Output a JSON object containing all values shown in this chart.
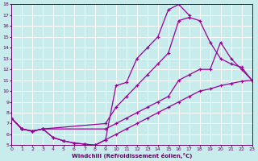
{
  "bg_color": "#c8ecec",
  "grid_color": "#ffffff",
  "line_color": "#990099",
  "xlabel": "Windchill (Refroidissement éolien,°C)",
  "xlim": [
    0,
    23
  ],
  "ylim": [
    5,
    18
  ],
  "xticks": [
    0,
    1,
    2,
    3,
    4,
    5,
    6,
    7,
    8,
    9,
    10,
    11,
    12,
    13,
    14,
    15,
    16,
    17,
    18,
    19,
    20,
    21,
    22,
    23
  ],
  "yticks": [
    5,
    6,
    7,
    8,
    9,
    10,
    11,
    12,
    13,
    14,
    15,
    16,
    17,
    18
  ],
  "curve1_x": [
    0,
    1,
    2,
    3,
    4,
    5,
    6,
    7,
    8,
    9,
    10,
    11,
    12,
    13,
    14,
    15,
    16,
    17
  ],
  "curve1_y": [
    7.5,
    6.5,
    6.3,
    6.5,
    5.7,
    5.4,
    5.2,
    5.1,
    5.0,
    5.5,
    10.5,
    10.8,
    13.0,
    14.0,
    15.0,
    17.5,
    18.0,
    17.0
  ],
  "curve2_x": [
    0,
    1,
    2,
    3,
    9,
    10,
    11,
    12,
    13,
    14,
    15,
    16,
    17,
    18,
    19,
    20,
    21,
    22,
    23
  ],
  "curve2_y": [
    7.5,
    6.5,
    6.3,
    6.5,
    7.0,
    8.5,
    9.5,
    10.5,
    11.5,
    12.5,
    13.5,
    16.5,
    16.8,
    16.5,
    14.5,
    13.0,
    12.5,
    12.2,
    11.0
  ],
  "curve3_x": [
    0,
    1,
    2,
    3,
    9,
    10,
    11,
    12,
    13,
    14,
    15,
    16,
    17,
    18,
    19,
    20,
    21,
    22,
    23
  ],
  "curve3_y": [
    7.5,
    6.5,
    6.3,
    6.5,
    6.5,
    7.0,
    7.5,
    8.0,
    8.5,
    9.0,
    9.5,
    11.0,
    11.5,
    12.0,
    12.0,
    14.5,
    13.0,
    12.0,
    11.0
  ],
  "curve4_x": [
    0,
    1,
    2,
    3,
    4,
    5,
    6,
    7,
    8,
    9,
    10,
    11,
    12,
    13,
    14,
    15,
    16,
    17,
    18,
    19,
    20,
    21,
    22,
    23
  ],
  "curve4_y": [
    7.5,
    6.5,
    6.3,
    6.5,
    5.7,
    5.4,
    5.2,
    5.1,
    5.0,
    5.5,
    6.0,
    6.5,
    7.0,
    7.5,
    8.0,
    8.5,
    9.0,
    9.5,
    10.0,
    10.2,
    10.5,
    10.7,
    10.9,
    11.0
  ]
}
